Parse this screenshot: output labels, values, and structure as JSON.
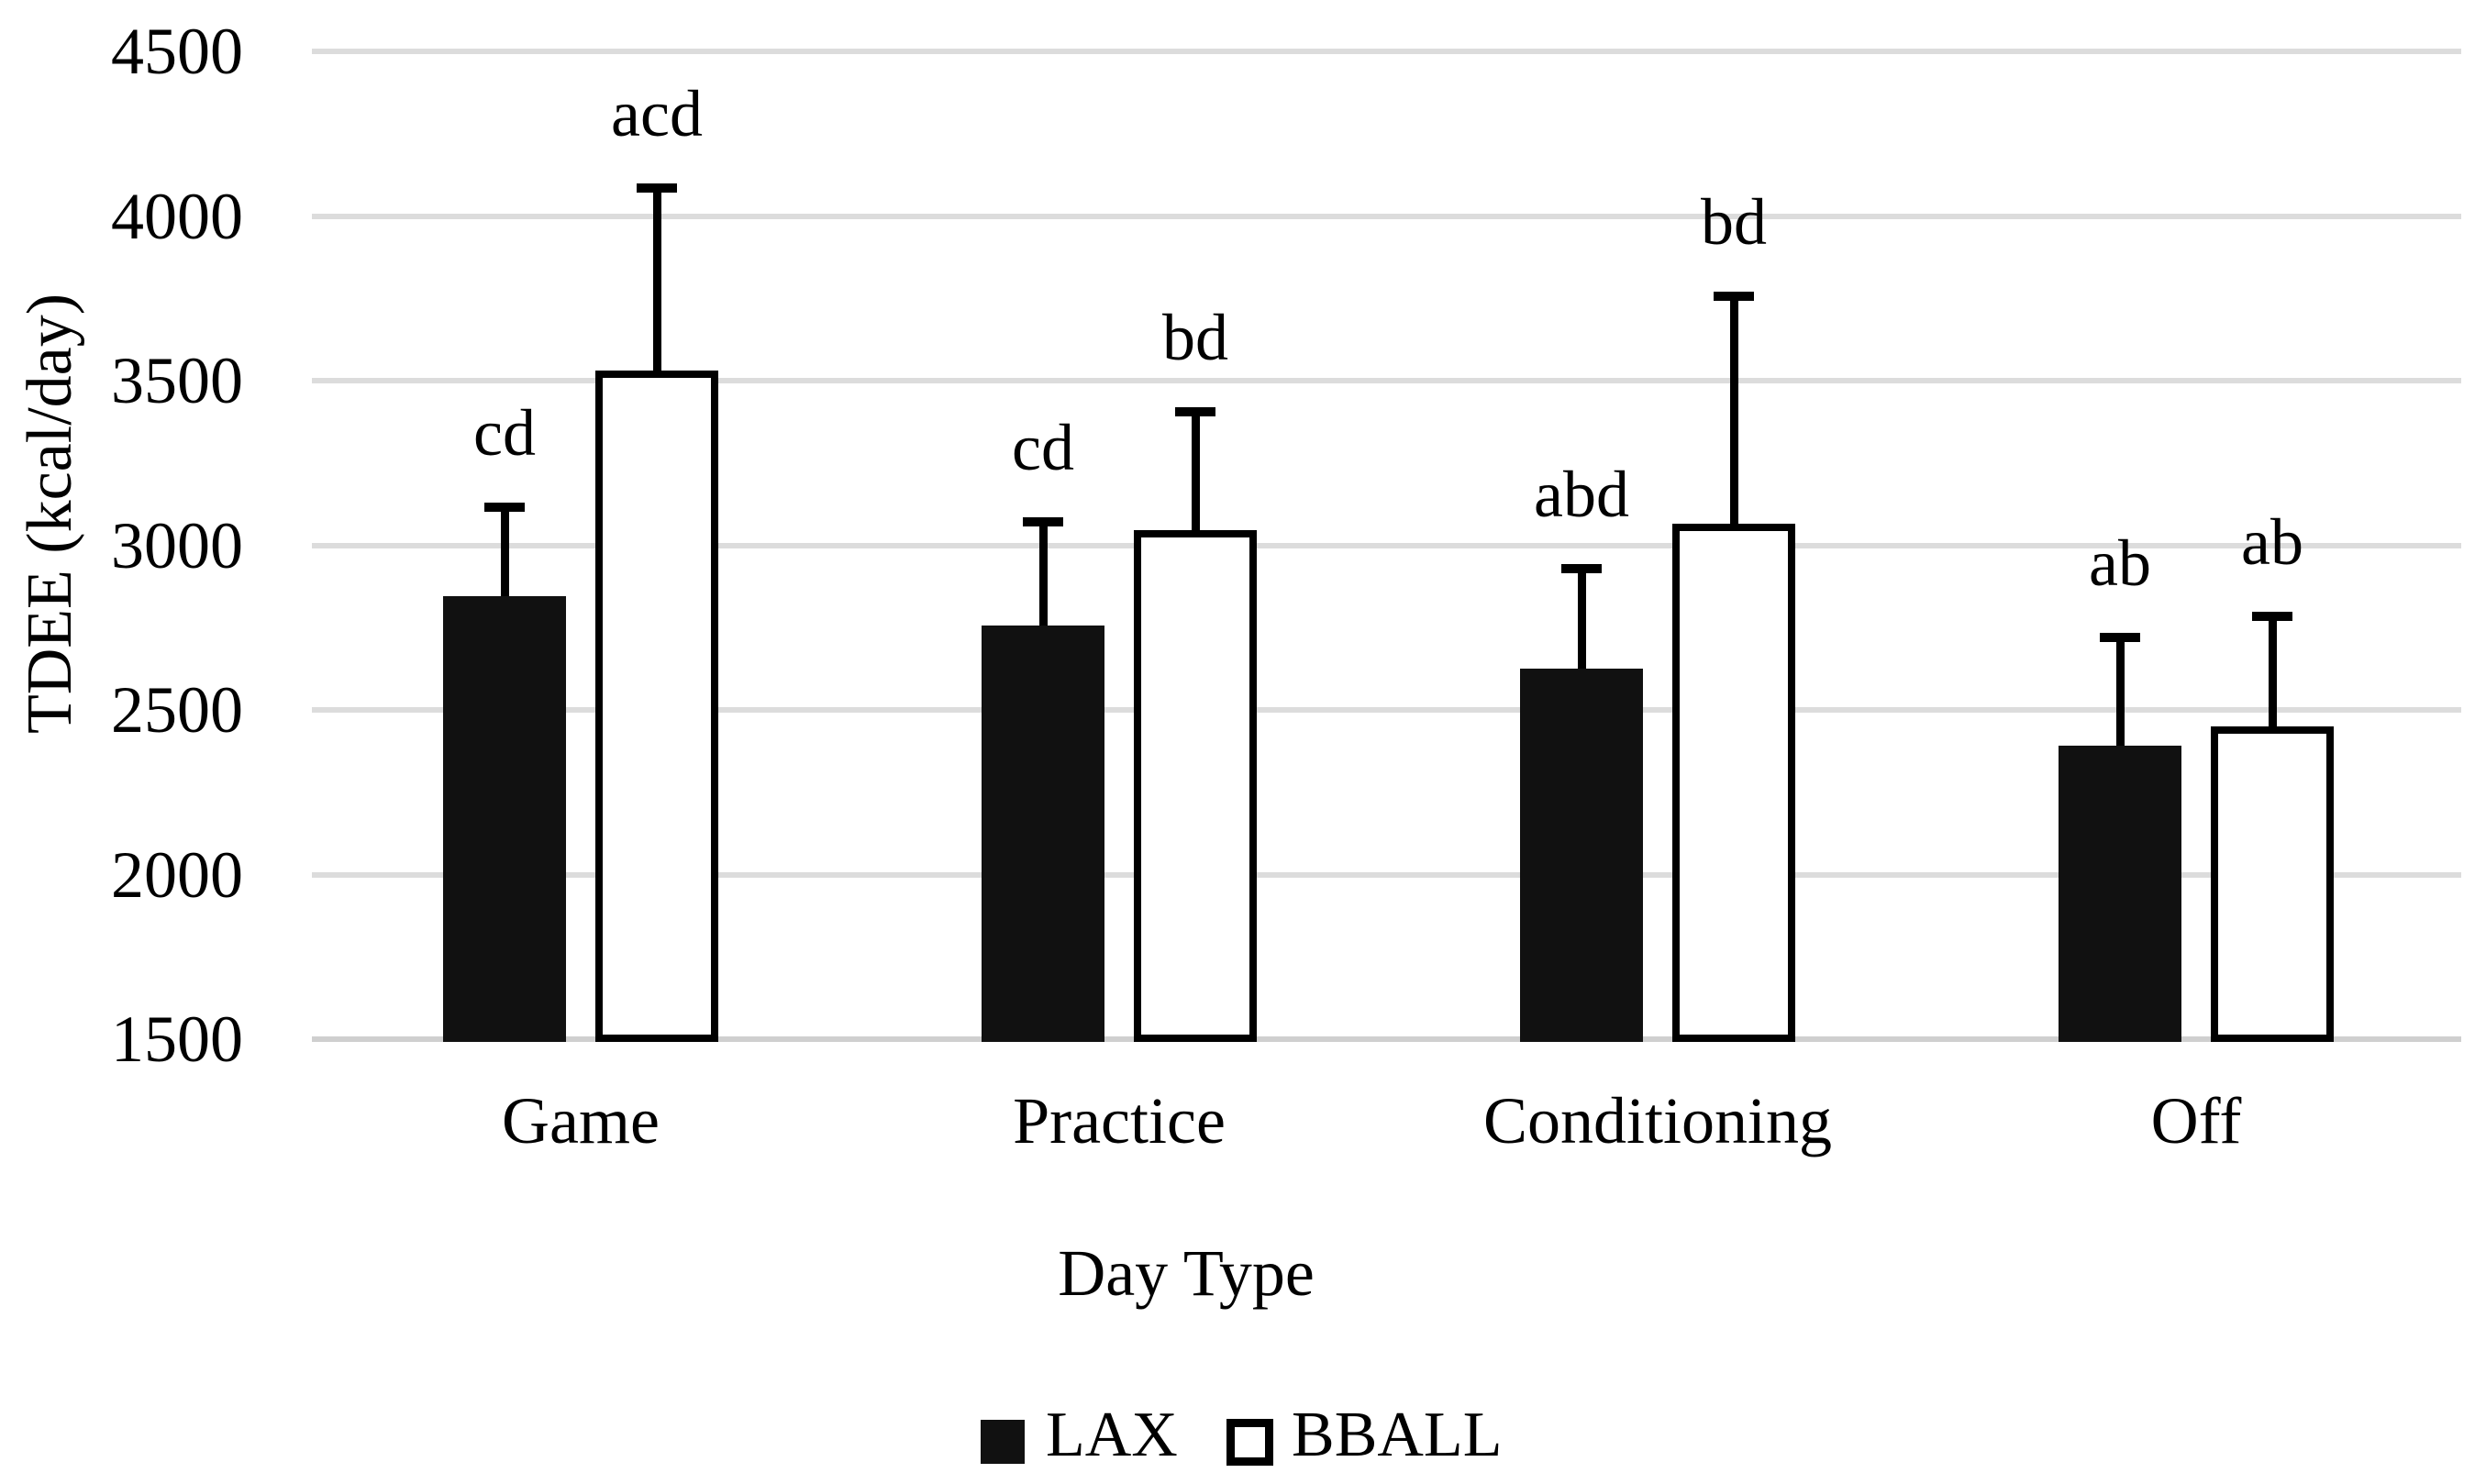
{
  "figure": {
    "background": "#ffffff"
  },
  "chart_data": {
    "type": "bar",
    "title": "",
    "xlabel": "Day Type",
    "ylabel": "TDEE (kcal/day)",
    "categories": [
      "Game",
      "Practice",
      "Conditioning",
      "Off"
    ],
    "series": [
      {
        "name": "LAX",
        "swatch": "solid-black",
        "fill": "#111111",
        "border": "#111111",
        "values": [
          2845,
          2755,
          2625,
          2390
        ],
        "error_plus": [
          270,
          315,
          305,
          330
        ],
        "sig_labels": [
          "cd",
          "cd",
          "abd",
          "ab"
        ]
      },
      {
        "name": "BBALL",
        "swatch": "outlined-white",
        "fill": "#ffffff",
        "border": "#000000",
        "values": [
          3530,
          3045,
          3065,
          2450
        ],
        "error_plus": [
          555,
          360,
          690,
          335
        ],
        "sig_labels": [
          "acd",
          "bd",
          "bd",
          "ab"
        ]
      }
    ],
    "ylim": [
      1500,
      4500
    ],
    "yticks": [
      4500,
      4000,
      3500,
      3000,
      2500,
      2000,
      1500
    ],
    "ytick_step": 500,
    "grid": "horizontal",
    "error_bars": "plus_only",
    "legend_position": "bottom-center"
  },
  "colors": {
    "grid": "#dcdcdc",
    "axis_line": "#cfcfcf",
    "bar_black": "#111111",
    "bar_white": "#ffffff",
    "bar_outline": "#000000",
    "text": "#000000"
  }
}
